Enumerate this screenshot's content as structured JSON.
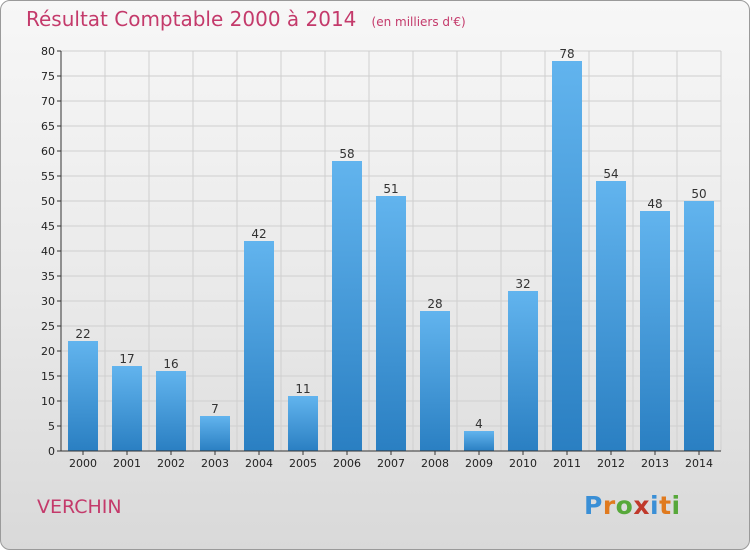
{
  "header": {
    "title": "Résultat Comptable 2000 à 2014",
    "unit": "(en milliers d'€)"
  },
  "footer": {
    "commune": "VERCHIN",
    "logo_text": "Proxiti",
    "logo_colors": [
      "#3a8fd6",
      "#e07a1e",
      "#57a83a",
      "#c0392b",
      "#3a8fd6",
      "#e07a1e",
      "#57a83a"
    ]
  },
  "colors": {
    "bar_top": "#62b4ee",
    "bar_bottom": "#2a7fc2",
    "grid": "#cfcfcf",
    "axis": "#333333",
    "title": "#c43a6b"
  },
  "chart_data": {
    "type": "bar",
    "title": "Résultat Comptable 2000 à 2014",
    "subtitle": "(en milliers d'€)",
    "categories": [
      "2000",
      "2001",
      "2002",
      "2003",
      "2004",
      "2005",
      "2006",
      "2007",
      "2008",
      "2009",
      "2010",
      "2011",
      "2012",
      "2013",
      "2014"
    ],
    "values": [
      22,
      17,
      16,
      7,
      42,
      11,
      58,
      51,
      28,
      4,
      32,
      78,
      54,
      48,
      50
    ],
    "ylim": [
      0,
      80
    ],
    "yticks": [
      0,
      5,
      10,
      15,
      20,
      25,
      30,
      35,
      40,
      45,
      50,
      55,
      60,
      65,
      70,
      75,
      80
    ],
    "grid": true
  }
}
